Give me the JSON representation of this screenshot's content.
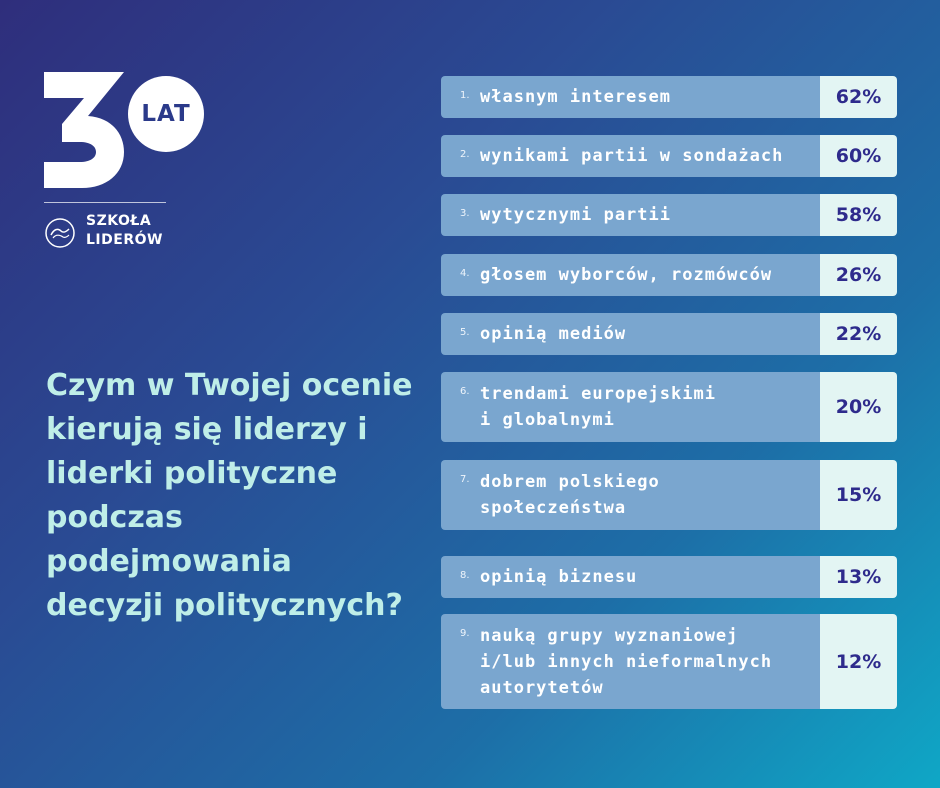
{
  "logo": {
    "digits": "30",
    "lat": "LAT",
    "school_name": "SZKOŁA LIDERÓW"
  },
  "question": "Czym w Twojej ocenie kierują się liderzy i liderki polityczne podczas podejmowania decyzji politycznych?",
  "colors": {
    "bar": "#7aa6cf",
    "value_box": "#e3f5f3",
    "value_text": "#2e2b8c",
    "question_text": "#bfeee8"
  },
  "chart_data": {
    "type": "table",
    "title": "Czym w Twojej ocenie kierują się liderzy i liderki polityczne podczas podejmowania decyzji politycznych?",
    "rows": [
      {
        "num": "1.",
        "label": "własnym interesem",
        "value": "62%"
      },
      {
        "num": "2.",
        "label": "wynikami partii w sondażach",
        "value": "60%"
      },
      {
        "num": "3.",
        "label": "wytycznymi partii",
        "value": "58%"
      },
      {
        "num": "4.",
        "label": "głosem wyborców, rozmówców",
        "value": "26%"
      },
      {
        "num": "5.",
        "label": "opinią mediów",
        "value": "22%"
      },
      {
        "num": "6.",
        "label": "trendami europejskimi\ni globalnymi",
        "value": "20%"
      },
      {
        "num": "7.",
        "label": "dobrem polskiego\nspołeczeństwa",
        "value": "15%"
      },
      {
        "num": "8.",
        "label": "opinią biznesu",
        "value": "13%"
      },
      {
        "num": "9.",
        "label": "nauką grupy wyznaniowej\ni/lub innych nieformalnych\nautorytetów",
        "value": "12%"
      }
    ]
  }
}
